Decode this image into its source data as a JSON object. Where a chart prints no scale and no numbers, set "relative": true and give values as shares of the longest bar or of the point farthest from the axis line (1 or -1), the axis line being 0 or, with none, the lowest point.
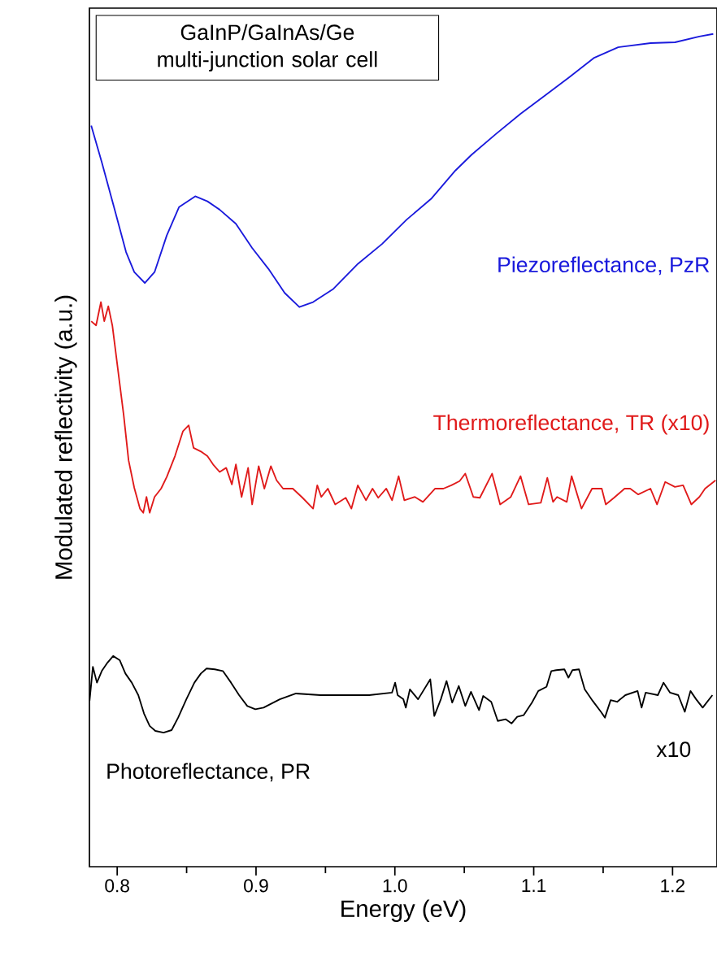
{
  "chart_data": {
    "type": "line",
    "xlabel": "Energy (eV)",
    "ylabel": "Modulated reflectivity (a.u.)",
    "relative": true,
    "tick_labels": "x",
    "xlim": [
      0.78,
      1.232
    ],
    "xticks": [
      {
        "value": 0.8,
        "label": "0.8"
      },
      {
        "value": 0.9,
        "label": "0.9"
      },
      {
        "value": 1.0,
        "label": "1.0"
      },
      {
        "value": 1.1,
        "label": "1.1"
      },
      {
        "value": 1.2,
        "label": "1.2"
      }
    ],
    "annotations": [
      "GaInP/GaInAs/Ge multi-junction solar cell",
      "x10"
    ],
    "series": [
      {
        "name": "Piezoreflectance, PzR",
        "color": "#1a1adc",
        "x": [
          0.7813,
          0.7889,
          0.7977,
          0.8064,
          0.8123,
          0.8199,
          0.8269,
          0.8357,
          0.8445,
          0.8562,
          0.865,
          0.8738,
          0.8855,
          0.8972,
          0.9089,
          0.9206,
          0.9312,
          0.9411,
          0.9558,
          0.9734,
          0.9909,
          1.0085,
          1.0261,
          1.0436,
          1.0553,
          1.0729,
          1.0905,
          1.1081,
          1.1256,
          1.1432,
          1.1608,
          1.1842,
          1.2018,
          1.2193,
          1.2293
        ],
        "values": [
          0.89,
          0.846,
          0.792,
          0.738,
          0.714,
          0.701,
          0.714,
          0.758,
          0.792,
          0.805,
          0.799,
          0.789,
          0.772,
          0.743,
          0.718,
          0.689,
          0.672,
          0.678,
          0.694,
          0.724,
          0.748,
          0.777,
          0.802,
          0.836,
          0.855,
          0.88,
          0.904,
          0.926,
          0.948,
          0.971,
          0.984,
          0.989,
          0.99,
          0.997,
          1.0
        ]
      },
      {
        "name": "Thermoreflectance, TR (x10)",
        "color": "#e01a1a",
        "x": [
          0.7813,
          0.7848,
          0.7883,
          0.7907,
          0.7936,
          0.7965,
          0.8006,
          0.8047,
          0.8082,
          0.8123,
          0.8164,
          0.8188,
          0.8211,
          0.8234,
          0.8269,
          0.8316,
          0.8357,
          0.8416,
          0.8474,
          0.8515,
          0.855,
          0.8609,
          0.865,
          0.8691,
          0.8738,
          0.8785,
          0.8826,
          0.8855,
          0.8896,
          0.8943,
          0.8972,
          0.9019,
          0.906,
          0.9107,
          0.9148,
          0.9195,
          0.9265,
          0.9335,
          0.9411,
          0.9441,
          0.947,
          0.9517,
          0.957,
          0.9646,
          0.9687,
          0.9733,
          0.9792,
          0.9839,
          0.988,
          0.9938,
          0.998,
          1.0027,
          1.0068,
          1.0144,
          1.0202,
          1.029,
          1.0349,
          1.0407,
          1.0466,
          1.0507,
          1.0565,
          1.0612,
          1.07,
          1.0758,
          1.0835,
          1.0905,
          1.0963,
          1.1051,
          1.1098,
          1.1139,
          1.1168,
          1.1238,
          1.1273,
          1.1344,
          1.142,
          1.149,
          1.1519,
          1.1578,
          1.1654,
          1.1695,
          1.1753,
          1.1841,
          1.1888,
          1.1947,
          1.2017,
          1.2076,
          1.2135,
          1.2193,
          1.2234,
          1.231
        ],
        "values": [
          0.655,
          0.65,
          0.678,
          0.655,
          0.673,
          0.65,
          0.596,
          0.542,
          0.488,
          0.455,
          0.43,
          0.425,
          0.444,
          0.425,
          0.444,
          0.454,
          0.468,
          0.493,
          0.523,
          0.53,
          0.503,
          0.498,
          0.493,
          0.483,
          0.474,
          0.479,
          0.459,
          0.483,
          0.444,
          0.479,
          0.435,
          0.481,
          0.454,
          0.481,
          0.464,
          0.454,
          0.454,
          0.443,
          0.43,
          0.458,
          0.444,
          0.454,
          0.435,
          0.443,
          0.43,
          0.458,
          0.44,
          0.454,
          0.443,
          0.454,
          0.44,
          0.469,
          0.44,
          0.444,
          0.438,
          0.454,
          0.454,
          0.458,
          0.463,
          0.472,
          0.444,
          0.443,
          0.472,
          0.435,
          0.444,
          0.469,
          0.435,
          0.437,
          0.467,
          0.438,
          0.444,
          0.438,
          0.469,
          0.43,
          0.454,
          0.454,
          0.435,
          0.443,
          0.454,
          0.454,
          0.447,
          0.454,
          0.435,
          0.462,
          0.456,
          0.458,
          0.435,
          0.444,
          0.454,
          0.464
        ]
      },
      {
        "name": "Photoreflectance, PR",
        "color": "#000000",
        "x": [
          0.7801,
          0.7825,
          0.7854,
          0.7889,
          0.793,
          0.7971,
          0.8018,
          0.8059,
          0.8105,
          0.8152,
          0.8193,
          0.8234,
          0.8275,
          0.8334,
          0.8392,
          0.8439,
          0.8498,
          0.8556,
          0.8603,
          0.8644,
          0.8703,
          0.8761,
          0.882,
          0.8878,
          0.8937,
          0.8995,
          0.9054,
          0.9171,
          0.9288,
          0.9464,
          0.964,
          0.9815,
          0.9979,
          1.0002,
          1.002,
          1.0061,
          1.0079,
          1.0108,
          1.0167,
          1.0255,
          1.0284,
          1.0331,
          1.0372,
          1.0413,
          1.046,
          1.0507,
          1.0548,
          1.0606,
          1.0636,
          1.0694,
          1.0741,
          1.0799,
          1.084,
          1.0881,
          1.0928,
          1.0987,
          1.1033,
          1.1092,
          1.1127,
          1.1162,
          1.1221,
          1.125,
          1.1279,
          1.1326,
          1.1367,
          1.1425,
          1.1484,
          1.1513,
          1.1554,
          1.1601,
          1.166,
          1.1748,
          1.1777,
          1.1806,
          1.1894,
          1.1935,
          1.1982,
          1.2041,
          1.2088,
          1.2129,
          1.217,
          1.2217,
          1.2287
        ],
        "values": [
          0.199,
          0.24,
          0.221,
          0.235,
          0.245,
          0.253,
          0.248,
          0.232,
          0.221,
          0.206,
          0.184,
          0.169,
          0.163,
          0.161,
          0.164,
          0.179,
          0.201,
          0.221,
          0.232,
          0.238,
          0.237,
          0.235,
          0.221,
          0.206,
          0.193,
          0.189,
          0.191,
          0.201,
          0.208,
          0.206,
          0.206,
          0.206,
          0.209,
          0.221,
          0.206,
          0.201,
          0.191,
          0.213,
          0.201,
          0.225,
          0.181,
          0.201,
          0.223,
          0.197,
          0.217,
          0.193,
          0.21,
          0.188,
          0.205,
          0.198,
          0.175,
          0.177,
          0.172,
          0.18,
          0.182,
          0.197,
          0.211,
          0.216,
          0.235,
          0.236,
          0.237,
          0.227,
          0.236,
          0.237,
          0.213,
          0.199,
          0.186,
          0.179,
          0.2,
          0.198,
          0.206,
          0.211,
          0.191,
          0.209,
          0.206,
          0.221,
          0.209,
          0.206,
          0.186,
          0.211,
          0.201,
          0.191,
          0.206
        ]
      }
    ]
  }
}
